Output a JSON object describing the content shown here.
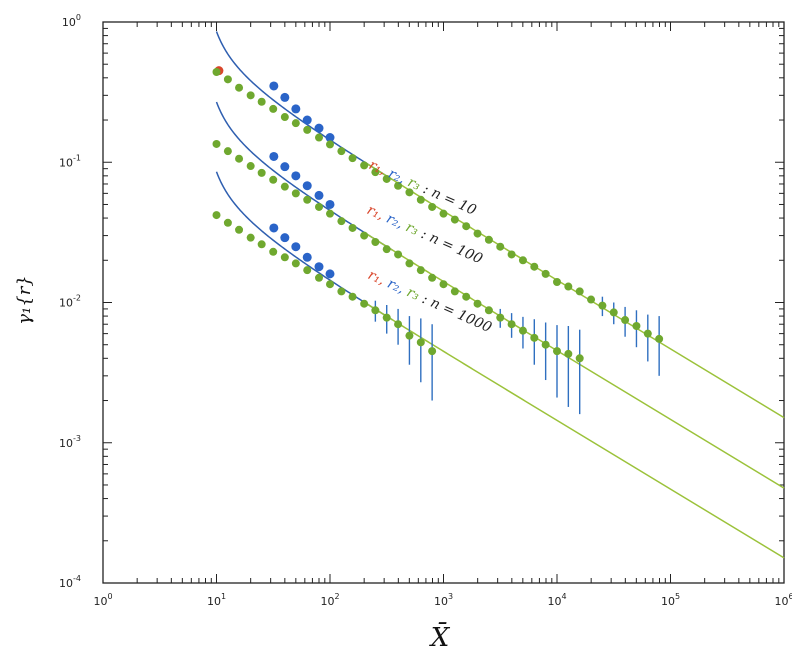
{
  "chart_data": {
    "type": "scatter",
    "x_scale": "log",
    "y_scale": "log",
    "xlim": [
      1,
      1000000
    ],
    "ylim": [
      0.0001,
      1
    ],
    "xlabel": "X̄",
    "ylabel": "γ₁{r}",
    "x_ticks": [
      1,
      10,
      100,
      1000,
      10000,
      100000,
      1000000
    ],
    "x_tick_labels": [
      {
        "base": "10",
        "exp": "0"
      },
      {
        "base": "10",
        "exp": "1"
      },
      {
        "base": "10",
        "exp": "2"
      },
      {
        "base": "10",
        "exp": "3"
      },
      {
        "base": "10",
        "exp": "4"
      },
      {
        "base": "10",
        "exp": "5"
      },
      {
        "base": "10",
        "exp": "6"
      }
    ],
    "y_ticks": [
      0.0001,
      0.001,
      0.01,
      0.1,
      1
    ],
    "y_tick_labels": [
      {
        "base": "10",
        "exp": "-4"
      },
      {
        "base": "10",
        "exp": "-3"
      },
      {
        "base": "10",
        "exp": "-2"
      },
      {
        "base": "10",
        "exp": "-1"
      },
      {
        "base": "10",
        "exp": "0"
      }
    ],
    "grid": false,
    "colors": {
      "r1": "#d9462b",
      "r2": "#2a64c8",
      "r3": "#6fa82f",
      "curve_blue": "#2f5fb0",
      "curve_green": "#9bc23a",
      "errorbar": "#2f6fc0"
    },
    "groups": [
      {
        "annotation": {
          "r1": "r₁,",
          "r2": "r₂,",
          "r3": "r₃",
          "tail": ": n = 10"
        },
        "curve": {
          "amplitude": 1.4,
          "offset_x": 0.0,
          "x_range": [
            10,
            1000000
          ]
        },
        "r1_points": [
          [
            10.5,
            0.45
          ]
        ],
        "r2_points": [
          [
            32,
            0.35
          ],
          [
            40,
            0.29
          ],
          [
            50,
            0.24
          ],
          [
            63,
            0.2
          ],
          [
            80,
            0.175
          ],
          [
            100,
            0.15
          ]
        ],
        "r3_points": [
          [
            10,
            0.44
          ],
          [
            12.6,
            0.39
          ],
          [
            15.8,
            0.34
          ],
          [
            20,
            0.3
          ],
          [
            25,
            0.27
          ],
          [
            31.6,
            0.24
          ],
          [
            40,
            0.21
          ],
          [
            50,
            0.19
          ],
          [
            63,
            0.17
          ],
          [
            80,
            0.15
          ],
          [
            100,
            0.134
          ],
          [
            126,
            0.12
          ],
          [
            158,
            0.107
          ],
          [
            200,
            0.095
          ],
          [
            251,
            0.085
          ],
          [
            316,
            0.076
          ],
          [
            398,
            0.068
          ],
          [
            501,
            0.061
          ],
          [
            631,
            0.054
          ],
          [
            794,
            0.048
          ],
          [
            1000,
            0.043
          ],
          [
            1259,
            0.039
          ],
          [
            1585,
            0.035
          ],
          [
            1995,
            0.031
          ],
          [
            2512,
            0.028
          ],
          [
            3162,
            0.025
          ],
          [
            3981,
            0.022
          ],
          [
            5012,
            0.02
          ],
          [
            6310,
            0.018
          ],
          [
            7943,
            0.016
          ],
          [
            10000,
            0.014
          ],
          [
            12590,
            0.013
          ],
          [
            15850,
            0.012
          ],
          [
            19950,
            0.0105
          ]
        ],
        "errorbar_points": [
          [
            25120,
            0.0095,
            0.0015
          ],
          [
            31620,
            0.0085,
            0.0015
          ],
          [
            39810,
            0.0075,
            0.0018
          ],
          [
            50120,
            0.0068,
            0.002
          ],
          [
            63100,
            0.006,
            0.0022
          ],
          [
            79430,
            0.0055,
            0.0025
          ]
        ]
      },
      {
        "annotation": {
          "r1": "r₁,",
          "r2": "r₂,",
          "r3": "r₃",
          "tail": ": n = 100"
        },
        "curve": {
          "amplitude": 0.44,
          "offset_x": 0.0,
          "x_range": [
            10,
            1000000
          ]
        },
        "r1_points": [],
        "r2_points": [
          [
            32,
            0.11
          ],
          [
            40,
            0.093
          ],
          [
            50,
            0.08
          ],
          [
            63,
            0.068
          ],
          [
            80,
            0.058
          ],
          [
            100,
            0.05
          ]
        ],
        "r3_points": [
          [
            10,
            0.135
          ],
          [
            12.6,
            0.12
          ],
          [
            15.8,
            0.106
          ],
          [
            20,
            0.094
          ],
          [
            25,
            0.084
          ],
          [
            31.6,
            0.075
          ],
          [
            40,
            0.067
          ],
          [
            50,
            0.06
          ],
          [
            63,
            0.054
          ],
          [
            80,
            0.048
          ],
          [
            100,
            0.043
          ],
          [
            126,
            0.038
          ],
          [
            158,
            0.034
          ],
          [
            200,
            0.03
          ],
          [
            251,
            0.027
          ],
          [
            316,
            0.024
          ],
          [
            398,
            0.022
          ],
          [
            501,
            0.019
          ],
          [
            631,
            0.017
          ],
          [
            794,
            0.015
          ],
          [
            1000,
            0.0135
          ],
          [
            1259,
            0.012
          ],
          [
            1585,
            0.011
          ],
          [
            1995,
            0.0098
          ],
          [
            2512,
            0.0088
          ]
        ],
        "errorbar_points": [
          [
            3162,
            0.0078,
            0.0012
          ],
          [
            3981,
            0.007,
            0.0014
          ],
          [
            5012,
            0.0063,
            0.0016
          ],
          [
            6310,
            0.0056,
            0.002
          ],
          [
            7943,
            0.005,
            0.0022
          ],
          [
            10000,
            0.0045,
            0.0024
          ],
          [
            12590,
            0.0043,
            0.0025
          ],
          [
            15850,
            0.004,
            0.0024
          ]
        ]
      },
      {
        "annotation": {
          "r1": "r₁,",
          "r2": "r₂,",
          "r3": "r₃",
          "tail": ": n = 1000"
        },
        "curve": {
          "amplitude": 0.14,
          "offset_x": 0.0,
          "x_range": [
            10,
            1000000
          ]
        },
        "r1_points": [],
        "r2_points": [
          [
            32,
            0.034
          ],
          [
            40,
            0.029
          ],
          [
            50,
            0.025
          ],
          [
            63,
            0.021
          ],
          [
            80,
            0.018
          ],
          [
            100,
            0.016
          ]
        ],
        "r3_points": [
          [
            10,
            0.042
          ],
          [
            12.6,
            0.037
          ],
          [
            15.8,
            0.033
          ],
          [
            20,
            0.029
          ],
          [
            25,
            0.026
          ],
          [
            31.6,
            0.023
          ],
          [
            40,
            0.021
          ],
          [
            50,
            0.019
          ],
          [
            63,
            0.017
          ],
          [
            80,
            0.015
          ],
          [
            100,
            0.0135
          ],
          [
            126,
            0.012
          ],
          [
            158,
            0.011
          ],
          [
            200,
            0.0098
          ]
        ],
        "errorbar_points": [
          [
            251,
            0.0088,
            0.0015
          ],
          [
            316,
            0.0078,
            0.0018
          ],
          [
            398,
            0.007,
            0.002
          ],
          [
            501,
            0.0058,
            0.0022
          ],
          [
            631,
            0.0052,
            0.0025
          ],
          [
            794,
            0.0045,
            0.0025
          ]
        ]
      }
    ]
  }
}
